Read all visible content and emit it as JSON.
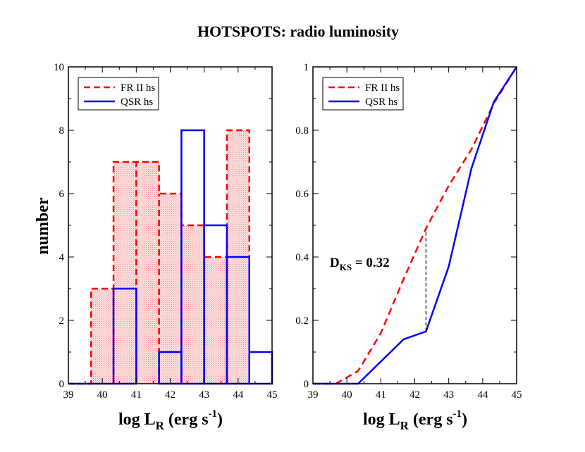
{
  "figure": {
    "title": "HOTSPOTS: radio luminosity",
    "ylabel_left": "number",
    "xlabel": {
      "main": "log L",
      "sub": "R",
      "rest": " (erg s",
      "sup": "-1",
      "close": ")"
    },
    "annotation": {
      "main": "D",
      "sub": "KS",
      "rest": " = 0.32"
    }
  },
  "chart_data": [
    {
      "type": "bar",
      "subtype": "histogram",
      "ylabel": "number",
      "xlim": [
        39,
        45
      ],
      "ylim": [
        0,
        10
      ],
      "xticks": [
        "39",
        "40",
        "41",
        "42",
        "43",
        "44",
        "45"
      ],
      "yticks": [
        "0",
        "2",
        "4",
        "6",
        "8",
        "10"
      ],
      "legend_position": "top-left",
      "series": [
        {
          "name": "FR II hs",
          "color": "#ff0000",
          "style": "dashed, filled pink",
          "bin_edges": [
            39.67,
            40.33,
            41.0,
            41.67,
            42.33,
            43.0,
            43.67,
            44.33
          ],
          "values": [
            3,
            7,
            7,
            6,
            5,
            4,
            8
          ]
        },
        {
          "name": "QSR hs",
          "color": "#0000ff",
          "style": "solid",
          "bin_edges": [
            40.33,
            41.0,
            41.67,
            42.33,
            43.0,
            43.67,
            44.33,
            45.0
          ],
          "values": [
            3,
            0,
            1,
            8,
            5,
            4,
            1
          ]
        }
      ]
    },
    {
      "type": "line",
      "subtype": "cumulative distribution",
      "xlim": [
        39,
        45
      ],
      "ylim": [
        0,
        1
      ],
      "xticks": [
        "39",
        "40",
        "41",
        "42",
        "43",
        "44",
        "45"
      ],
      "yticks": [
        "0",
        "0.2",
        "0.4",
        "0.6",
        "0.8",
        "1"
      ],
      "legend_position": "top-left",
      "series": [
        {
          "name": "FR II hs",
          "color": "#ff0000",
          "style": "dashed",
          "x": [
            39.0,
            39.67,
            40.0,
            40.33,
            41.0,
            41.67,
            42.33,
            43.0,
            43.67,
            44.33,
            45.0
          ],
          "y": [
            0.0,
            0.0,
            0.02,
            0.04,
            0.16,
            0.33,
            0.49,
            0.625,
            0.74,
            0.885,
            1.0
          ]
        },
        {
          "name": "QSR hs",
          "color": "#0000ff",
          "style": "solid",
          "x": [
            39.0,
            40.33,
            41.0,
            41.67,
            42.33,
            43.0,
            43.67,
            44.33,
            45.0
          ],
          "y": [
            0.0,
            0.0,
            0.07,
            0.14,
            0.165,
            0.37,
            0.68,
            0.89,
            1.0
          ]
        }
      ],
      "ks_line": {
        "x": 42.33,
        "y_from": 0.165,
        "y_to": 0.49,
        "label": "D_KS = 0.32"
      }
    }
  ]
}
